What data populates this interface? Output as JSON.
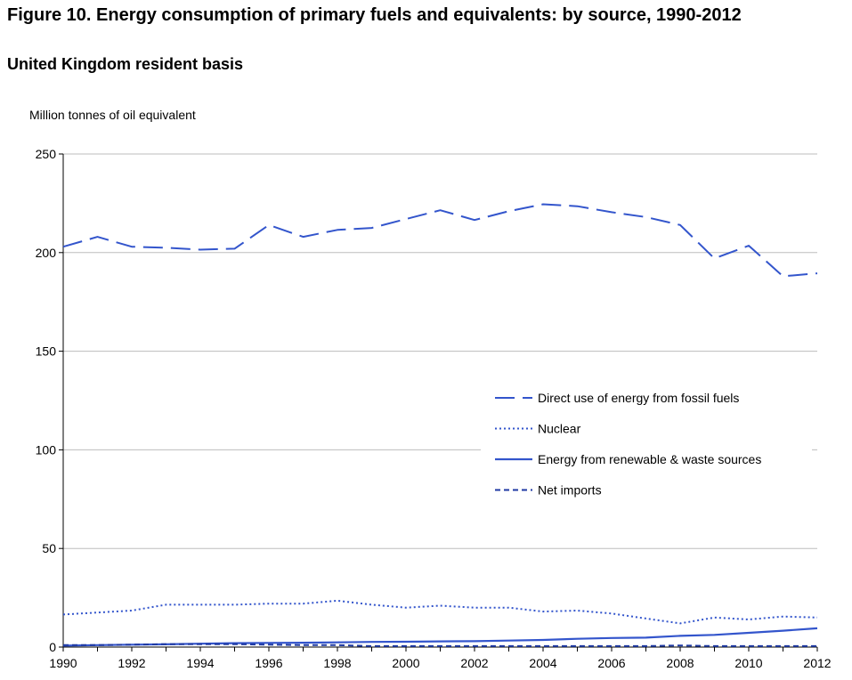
{
  "chart_data": {
    "type": "line",
    "title": "Figure 10. Energy consumption of primary fuels and equivalents: by source, 1990-2012",
    "subtitle": "United Kingdom resident basis",
    "ylabel": "Million tonnes of oil equivalent",
    "xlabel": "",
    "ylim": [
      0,
      250
    ],
    "yticks": [
      0,
      50,
      100,
      150,
      200,
      250
    ],
    "xlim": [
      1990,
      2012
    ],
    "xticks": [
      1990,
      1992,
      1994,
      1996,
      1998,
      2000,
      2002,
      2004,
      2006,
      2008,
      2010,
      2012
    ],
    "grid": true,
    "legend_position": "right",
    "x": [
      1990,
      1991,
      1992,
      1993,
      1994,
      1995,
      1996,
      1997,
      1998,
      1999,
      2000,
      2001,
      2002,
      2003,
      2004,
      2005,
      2006,
      2007,
      2008,
      2009,
      2010,
      2011,
      2012
    ],
    "series": [
      {
        "name": "Direct use of energy from fossil fuels",
        "style": "dashed",
        "color": "#3355cc",
        "values": [
          203,
          208,
          203,
          202.5,
          201.5,
          202,
          214,
          208,
          211.5,
          212.5,
          217,
          221.5,
          216.5,
          221,
          224.5,
          223.5,
          220.5,
          218,
          214,
          197,
          203.5,
          188,
          189.5
        ]
      },
      {
        "name": "Nuclear",
        "style": "dotted",
        "color": "#3355cc",
        "values": [
          16.5,
          17.5,
          18.5,
          21.5,
          21.5,
          21.5,
          22,
          22,
          23.5,
          21.5,
          20,
          21,
          20,
          20,
          18,
          18.5,
          17,
          14.5,
          12,
          15,
          14,
          15.5,
          15
        ]
      },
      {
        "name": "Energy from renewable & waste sources",
        "style": "solid",
        "color": "#3355cc",
        "values": [
          0.7,
          1,
          1.2,
          1.4,
          1.7,
          2,
          2.1,
          2.2,
          2.4,
          2.6,
          2.7,
          2.9,
          3,
          3.3,
          3.6,
          4.2,
          4.6,
          4.8,
          5.7,
          6.2,
          7.2,
          8.3,
          9.5
        ]
      },
      {
        "name": "Net imports",
        "style": "short-dashed",
        "color": "#1f3aa3",
        "values": [
          1,
          1,
          1.2,
          1.5,
          1.5,
          1.5,
          1.2,
          1,
          1,
          0.5,
          0.5,
          0.5,
          0.5,
          0.5,
          0.5,
          0.5,
          0.5,
          0.5,
          0.8,
          0.5,
          0.5,
          0.5,
          0.5
        ]
      }
    ]
  }
}
